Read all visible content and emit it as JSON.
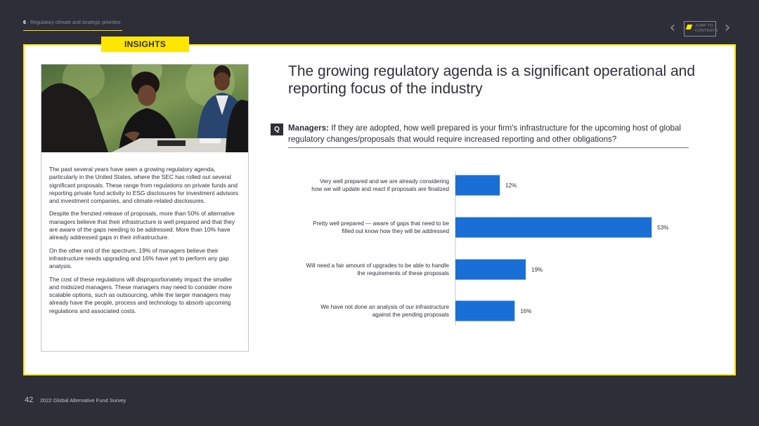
{
  "header": {
    "section_number": "6",
    "section_title": "Regulatory climate and strategic priorities",
    "jump_label_1": "JUMP TO",
    "jump_label_2": "CONTENTS",
    "prev_icon": "chevron-left-icon",
    "next_icon": "chevron-right-icon"
  },
  "tag": "INSIGHTS",
  "sidebar": {
    "paragraphs": [
      "The past several years have seen a growing regulatory agenda, particularly in the United States, where the SEC has rolled out several significant proposals. These range from regulations on private funds and reporting private fund activity to ESG disclosures for investment advisors and investment companies, and climate-related disclosures.",
      "Despite the frenzied release of proposals, more than 50% of alternative managers believe that their infrastructure is well prepared and that they are aware of the gaps needing to be addressed. More than 10% have already addressed gaps in their infrastructure.",
      "On the other end of the spectrum, 19% of managers believe their infrastructure needs upgrading and 16% have yet to perform any gap analysis.",
      "The cost of these regulations will disproportionately impact the smaller and midsized managers. These managers may need to consider more scalable options, such as outsourcing, while the larger managers may already have the people, process and technology to absorb upcoming regulations and associated costs."
    ]
  },
  "main": {
    "title": "The growing regulatory agenda is a significant operational and reporting focus of the industry",
    "q_badge": "Q",
    "question_lead": "Managers:",
    "question_text": " If they are adopted, how well prepared is your firm's infrastructure for the upcoming host of global regulatory changes/proposals that would require increased reporting and other obligations?"
  },
  "chart_data": {
    "type": "bar",
    "orientation": "horizontal",
    "categories": [
      [
        "Very well prepared and we are already considering",
        "how we will update and react if proposals are finalized"
      ],
      [
        "Pretty well prepared — aware of gaps that need to be",
        "filled out know how they will be addressed"
      ],
      [
        "Will need a fair amount of upgrades to be able to handle",
        "the requirements of these proposals"
      ],
      [
        "We have not done an analysis of our infrastructure",
        "against the pending proposals"
      ]
    ],
    "values": [
      12,
      53,
      19,
      16
    ],
    "value_labels": [
      "12%",
      "53%",
      "19%",
      "16%"
    ],
    "xlim": [
      0,
      60
    ],
    "bar_color": "#1a6fd6",
    "grid": false
  },
  "footer": {
    "page_number": "42",
    "publication": "2022 Global Alternative Fund Survey"
  }
}
